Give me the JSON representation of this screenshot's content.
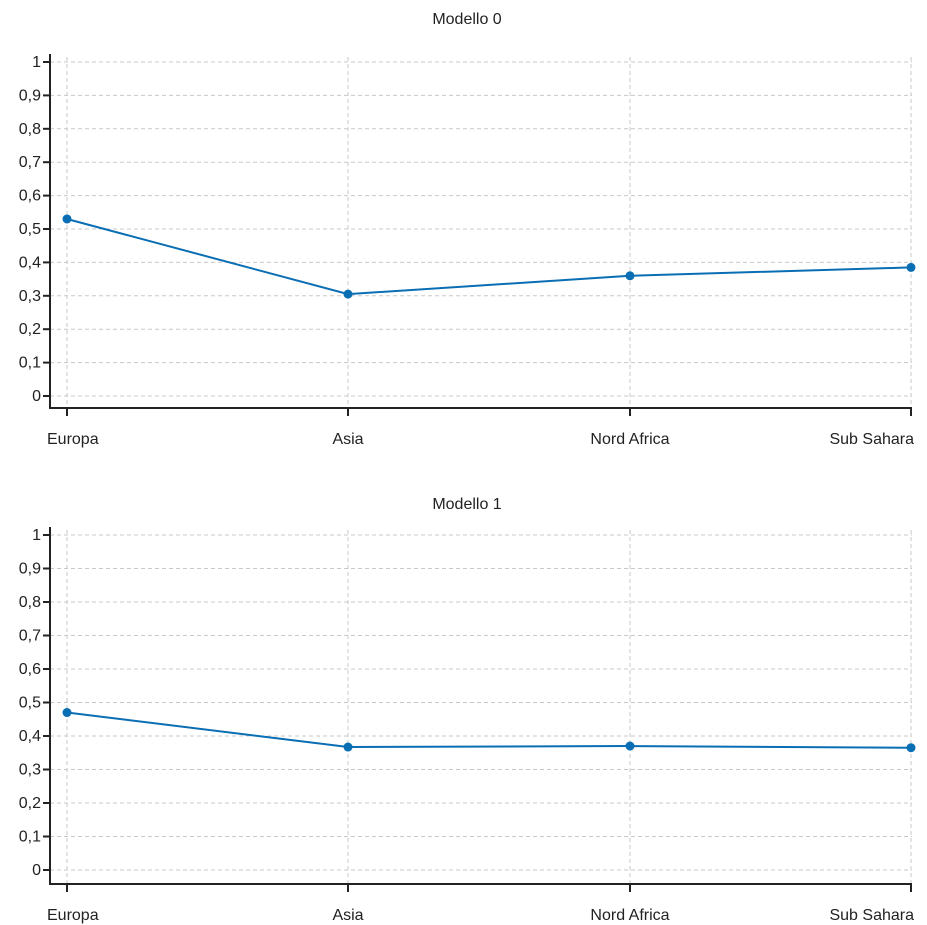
{
  "colors": {
    "series": "#0a6eb4",
    "axis": "#222222",
    "grid": "#c8c8c8"
  },
  "chart_data": [
    {
      "type": "line",
      "title": "Modello 0",
      "categories": [
        "Europa",
        "Asia",
        "Nord Africa",
        "Sub Sahara"
      ],
      "series": [
        {
          "values": [
            0.53,
            0.305,
            0.36,
            0.385
          ]
        }
      ],
      "ylim": [
        0,
        1
      ],
      "yticks": [
        0,
        0.1,
        0.2,
        0.3,
        0.4,
        0.5,
        0.6,
        0.7,
        0.8,
        0.9,
        1
      ],
      "ytick_labels": [
        "0",
        "0,1",
        "0,2",
        "0,3",
        "0,4",
        "0,5",
        "0,6",
        "0,7",
        "0,8",
        "0,9",
        "1"
      ],
      "xlabel": "",
      "ylabel": "",
      "grid": true
    },
    {
      "type": "line",
      "title": "Modello 1",
      "categories": [
        "Europa",
        "Asia",
        "Nord Africa",
        "Sub Sahara"
      ],
      "series": [
        {
          "values": [
            0.47,
            0.367,
            0.37,
            0.365
          ]
        }
      ],
      "ylim": [
        0,
        1
      ],
      "yticks": [
        0,
        0.1,
        0.2,
        0.3,
        0.4,
        0.5,
        0.6,
        0.7,
        0.8,
        0.9,
        1
      ],
      "ytick_labels": [
        "0",
        "0,1",
        "0,2",
        "0,3",
        "0,4",
        "0,5",
        "0,6",
        "0,7",
        "0,8",
        "0,9",
        "1"
      ],
      "xlabel": "",
      "ylabel": "",
      "grid": true
    }
  ]
}
